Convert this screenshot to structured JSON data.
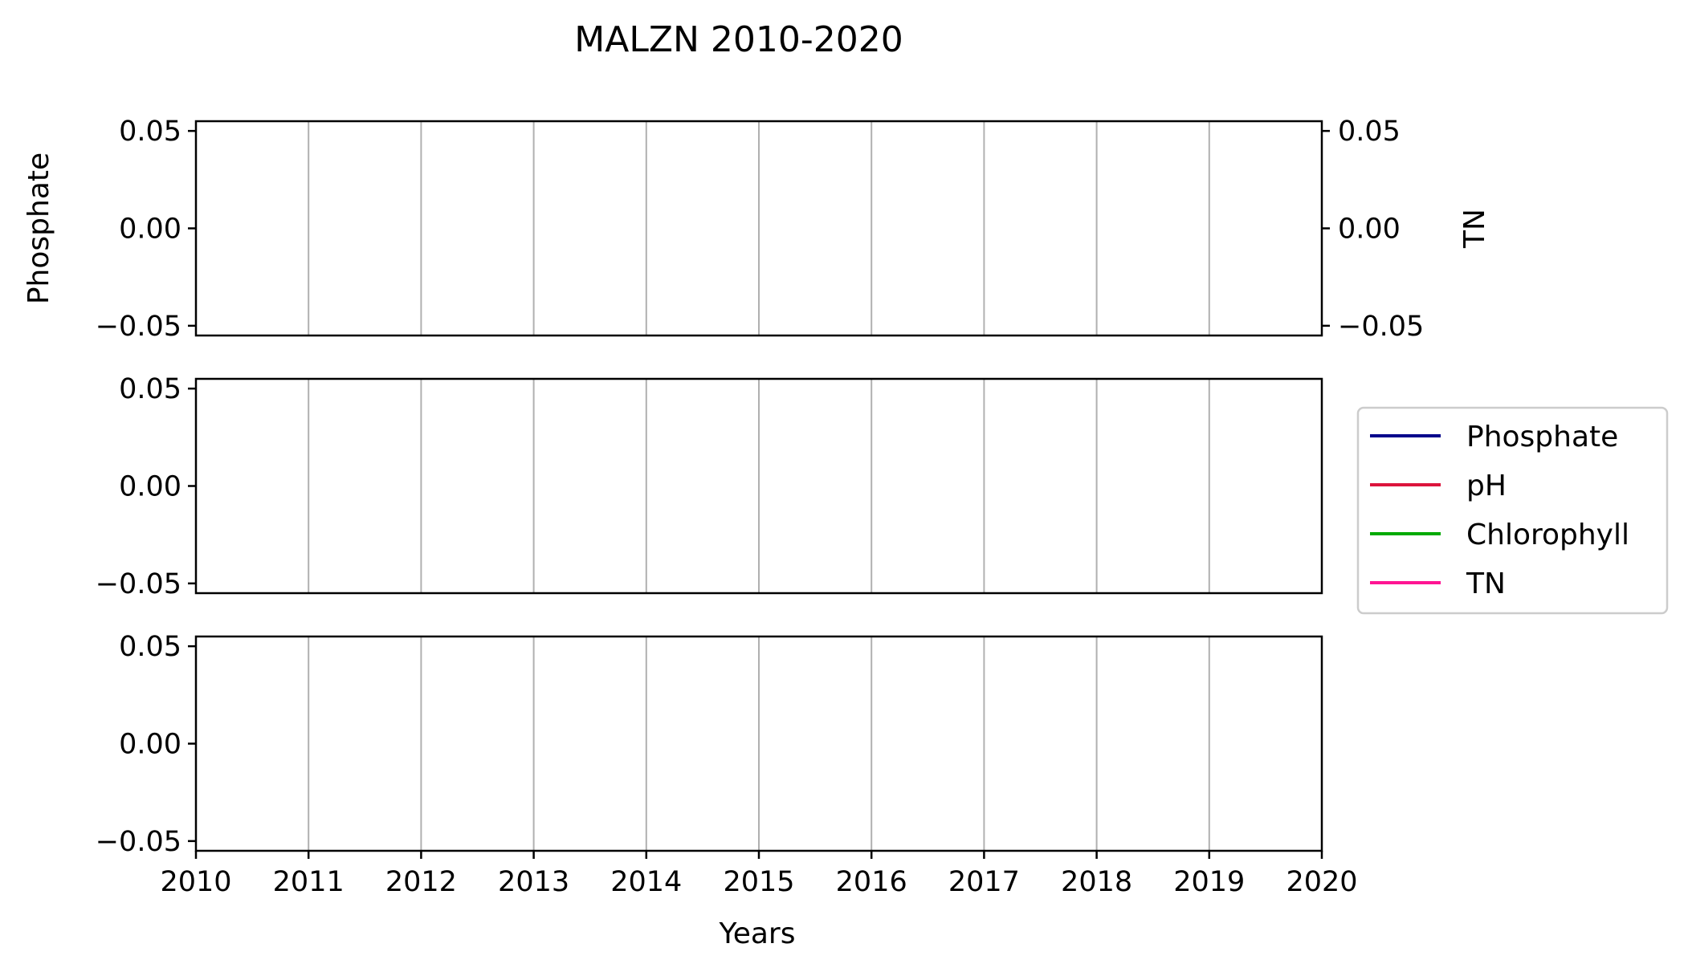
{
  "chart_data": {
    "type": "line",
    "title": "MALZN 2010-2020",
    "xlabel": "Years",
    "xlim": [
      2010,
      2020
    ],
    "x_ticks": [
      "2010",
      "2011",
      "2012",
      "2013",
      "2014",
      "2015",
      "2016",
      "2017",
      "2018",
      "2019",
      "2020"
    ],
    "grid": "vertical gridlines at each year",
    "legend_position": "right, outside, beside middle panel",
    "legend": [
      {
        "label": "Phosphate",
        "color": "#00008b"
      },
      {
        "label": "pH",
        "color": "#dc143c"
      },
      {
        "label": "Chlorophyll",
        "color": "#00aa00"
      },
      {
        "label": "TN",
        "color": "#ff1493"
      }
    ],
    "panels": [
      {
        "ylabel_left": "Phosphate",
        "ylabel_right": "TN",
        "ylim": [
          -0.055,
          0.055
        ],
        "y_ticks": [
          "0.05",
          "0.00",
          "−0.05"
        ],
        "right_y_ticks": [
          "0.05",
          "0.00",
          "−0.05"
        ],
        "series": []
      },
      {
        "ylabel_left": "",
        "ylim": [
          -0.055,
          0.055
        ],
        "y_ticks": [
          "0.05",
          "0.00",
          "−0.05"
        ],
        "series": []
      },
      {
        "ylabel_left": "",
        "ylim": [
          -0.055,
          0.055
        ],
        "y_ticks": [
          "0.05",
          "0.00",
          "−0.05"
        ],
        "series": []
      }
    ]
  }
}
